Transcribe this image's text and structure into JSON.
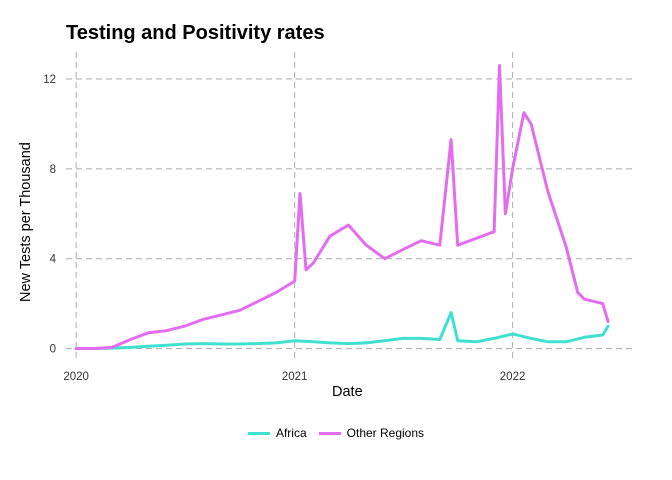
{
  "chart_data": {
    "type": "line",
    "title": "Testing and Positivity rates",
    "xlabel": "Date",
    "ylabel": "New Tests per Thousand",
    "x_range": [
      "2019-12-15",
      "2022-07-20"
    ],
    "ylim": [
      -0.6,
      13.2
    ],
    "x_ticks": [
      {
        "label": "2020",
        "date": "2020-01-01"
      },
      {
        "label": "2021",
        "date": "2021-01-01"
      },
      {
        "label": "2022",
        "date": "2022-01-01"
      }
    ],
    "y_ticks": [
      0,
      4,
      8,
      12
    ],
    "grid": "dashed",
    "legend": "bottom",
    "series": [
      {
        "name": "Africa",
        "color": "#40E0D0",
        "points": [
          [
            "2020-01-01",
            0
          ],
          [
            "2020-02-01",
            0
          ],
          [
            "2020-03-01",
            0.02
          ],
          [
            "2020-04-01",
            0.05
          ],
          [
            "2020-05-01",
            0.1
          ],
          [
            "2020-06-01",
            0.15
          ],
          [
            "2020-07-01",
            0.2
          ],
          [
            "2020-08-01",
            0.22
          ],
          [
            "2020-09-01",
            0.2
          ],
          [
            "2020-10-01",
            0.2
          ],
          [
            "2020-11-01",
            0.22
          ],
          [
            "2020-12-01",
            0.25
          ],
          [
            "2021-01-01",
            0.35
          ],
          [
            "2021-02-01",
            0.3
          ],
          [
            "2021-03-01",
            0.25
          ],
          [
            "2021-04-01",
            0.22
          ],
          [
            "2021-05-01",
            0.25
          ],
          [
            "2021-06-01",
            0.35
          ],
          [
            "2021-07-01",
            0.45
          ],
          [
            "2021-08-01",
            0.45
          ],
          [
            "2021-09-01",
            0.4
          ],
          [
            "2021-09-20",
            1.6
          ],
          [
            "2021-10-01",
            0.35
          ],
          [
            "2021-11-01",
            0.3
          ],
          [
            "2021-12-01",
            0.45
          ],
          [
            "2022-01-01",
            0.65
          ],
          [
            "2022-02-01",
            0.45
          ],
          [
            "2022-03-01",
            0.3
          ],
          [
            "2022-04-01",
            0.3
          ],
          [
            "2022-05-01",
            0.5
          ],
          [
            "2022-06-01",
            0.6
          ],
          [
            "2022-06-10",
            1.0
          ]
        ]
      },
      {
        "name": "Other Regions",
        "color": "#E46CF0",
        "points": [
          [
            "2020-01-01",
            0
          ],
          [
            "2020-02-01",
            0
          ],
          [
            "2020-03-01",
            0.05
          ],
          [
            "2020-04-01",
            0.4
          ],
          [
            "2020-05-01",
            0.7
          ],
          [
            "2020-06-01",
            0.8
          ],
          [
            "2020-07-01",
            1.0
          ],
          [
            "2020-08-01",
            1.3
          ],
          [
            "2020-09-01",
            1.5
          ],
          [
            "2020-10-01",
            1.7
          ],
          [
            "2020-11-01",
            2.1
          ],
          [
            "2020-12-01",
            2.5
          ],
          [
            "2021-01-01",
            3.0
          ],
          [
            "2021-01-10",
            6.9
          ],
          [
            "2021-01-20",
            3.5
          ],
          [
            "2021-02-01",
            3.8
          ],
          [
            "2021-03-01",
            5.0
          ],
          [
            "2021-04-01",
            5.5
          ],
          [
            "2021-05-01",
            4.6
          ],
          [
            "2021-06-01",
            4.0
          ],
          [
            "2021-07-01",
            4.4
          ],
          [
            "2021-08-01",
            4.8
          ],
          [
            "2021-09-01",
            4.6
          ],
          [
            "2021-09-20",
            9.3
          ],
          [
            "2021-10-01",
            4.6
          ],
          [
            "2021-11-01",
            4.9
          ],
          [
            "2021-12-01",
            5.2
          ],
          [
            "2021-12-10",
            12.6
          ],
          [
            "2021-12-20",
            6.0
          ],
          [
            "2022-01-01",
            8.0
          ],
          [
            "2022-01-20",
            10.5
          ],
          [
            "2022-02-01",
            10.0
          ],
          [
            "2022-03-01",
            7.0
          ],
          [
            "2022-04-01",
            4.5
          ],
          [
            "2022-04-20",
            2.5
          ],
          [
            "2022-05-01",
            2.2
          ],
          [
            "2022-06-01",
            2.0
          ],
          [
            "2022-06-10",
            1.2
          ]
        ]
      }
    ]
  }
}
